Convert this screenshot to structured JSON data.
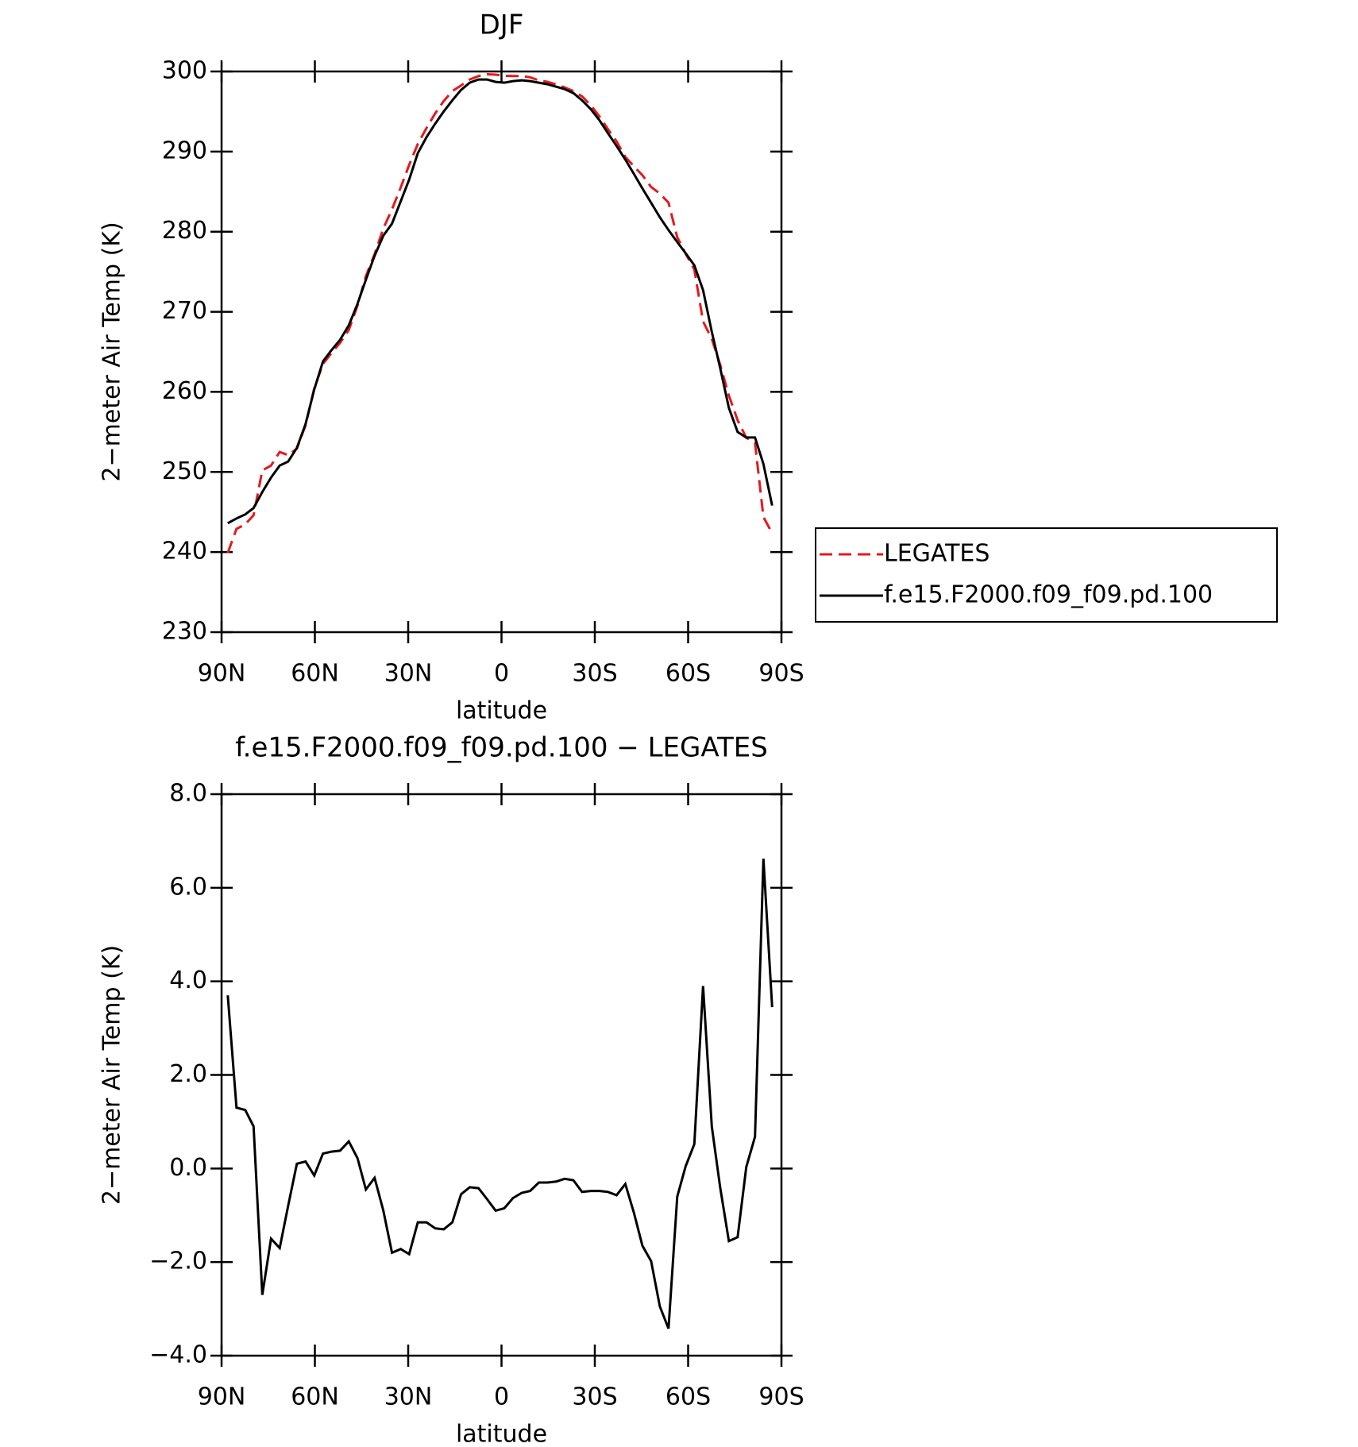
{
  "chart_data": [
    {
      "type": "line",
      "title": "DJF",
      "ylabel": "2−meter Air Temp (K)",
      "xlabel": "latitude",
      "x": [
        88.0,
        85.2,
        82.4,
        79.7,
        76.9,
        74.1,
        71.3,
        68.6,
        65.8,
        63.0,
        60.2,
        57.4,
        54.7,
        51.9,
        49.1,
        46.3,
        43.6,
        40.8,
        38.0,
        35.2,
        32.4,
        29.7,
        26.9,
        24.1,
        21.3,
        18.6,
        15.8,
        13.0,
        10.2,
        7.4,
        4.7,
        1.9,
        -0.9,
        -3.7,
        -6.5,
        -9.2,
        -12.0,
        -14.8,
        -17.6,
        -20.3,
        -23.1,
        -25.9,
        -28.7,
        -31.5,
        -34.2,
        -37.0,
        -39.8,
        -42.6,
        -45.3,
        -48.1,
        -50.9,
        -53.7,
        -56.5,
        -59.2,
        -62.0,
        -64.8,
        -67.6,
        -70.3,
        -73.1,
        -75.9,
        -78.7,
        -81.5,
        -84.2,
        -87.0
      ],
      "series": [
        {
          "name": "LEGATES",
          "color": "#e41a1c",
          "style": "dashed",
          "values": [
            239.9,
            242.9,
            243.45,
            244.6,
            250.2,
            250.8,
            252.5,
            252.1,
            252.9,
            255.85,
            260.45,
            263.48,
            264.84,
            266.12,
            267.72,
            270.78,
            274.45,
            277.2,
            280.4,
            282.8,
            285.52,
            288.33,
            290.95,
            292.95,
            294.78,
            296.3,
            297.55,
            298.25,
            299.0,
            299.42,
            299.65,
            299.6,
            299.45,
            299.43,
            299.42,
            299.28,
            298.9,
            298.7,
            298.38,
            298.02,
            297.55,
            296.9,
            295.78,
            294.38,
            292.8,
            291.27,
            289.33,
            288.15,
            287.05,
            285.58,
            284.75,
            283.62,
            279.3,
            277.25,
            275.28,
            268.8,
            266.6,
            263.4,
            259.55,
            256.47,
            254.27,
            253.62,
            244.38,
            242.35
          ]
        },
        {
          "name": "f.e15.F2000.f09_f09.pd.100",
          "color": "#000000",
          "style": "solid",
          "values": [
            243.6,
            244.2,
            244.7,
            245.5,
            247.5,
            249.3,
            250.8,
            251.3,
            253.0,
            256.0,
            260.3,
            263.8,
            265.2,
            266.5,
            268.3,
            271.0,
            274.0,
            277.0,
            279.5,
            281.0,
            283.8,
            286.5,
            289.8,
            291.8,
            293.5,
            295.0,
            296.4,
            297.7,
            298.6,
            299.0,
            299.0,
            298.7,
            298.6,
            298.8,
            298.9,
            298.8,
            298.6,
            298.4,
            298.1,
            297.8,
            297.3,
            296.4,
            295.3,
            293.9,
            292.3,
            290.7,
            289.0,
            287.2,
            285.4,
            283.6,
            281.8,
            280.2,
            278.7,
            277.3,
            275.8,
            272.7,
            267.5,
            263.0,
            258.0,
            255.0,
            254.3,
            254.3,
            251.0,
            245.8
          ]
        }
      ],
      "xlim": [
        90,
        -90
      ],
      "xticks": [
        {
          "value": 90,
          "label": "90N"
        },
        {
          "value": 60,
          "label": "60N"
        },
        {
          "value": 30,
          "label": "30N"
        },
        0,
        {
          "value": -30,
          "label": "30S"
        },
        {
          "value": -60,
          "label": "60S"
        },
        {
          "value": -90,
          "label": "90S"
        }
      ],
      "ylim": [
        230,
        300
      ],
      "yticks": [
        230,
        240,
        250,
        260,
        270,
        280,
        290,
        300
      ],
      "legend": "right"
    },
    {
      "type": "line",
      "title": "f.e15.F2000.f09_f09.pd.100 − LEGATES",
      "ylabel": "2−meter Air Temp (K)",
      "xlabel": "latitude",
      "x": [
        88.0,
        85.2,
        82.4,
        79.7,
        76.9,
        74.1,
        71.3,
        68.6,
        65.8,
        63.0,
        60.2,
        57.4,
        54.7,
        51.9,
        49.1,
        46.3,
        43.6,
        40.8,
        38.0,
        35.2,
        32.4,
        29.7,
        26.9,
        24.1,
        21.3,
        18.6,
        15.8,
        13.0,
        10.2,
        7.4,
        4.7,
        1.9,
        -0.9,
        -3.7,
        -6.5,
        -9.2,
        -12.0,
        -14.8,
        -17.6,
        -20.3,
        -23.1,
        -25.9,
        -28.7,
        -31.5,
        -34.2,
        -37.0,
        -39.8,
        -42.6,
        -45.3,
        -48.1,
        -50.9,
        -53.7,
        -56.5,
        -59.2,
        -62.0,
        -64.8,
        -67.6,
        -70.3,
        -73.1,
        -75.9,
        -78.7,
        -81.5,
        -84.2,
        -87.0
      ],
      "values": [
        3.7,
        1.3,
        1.25,
        0.9,
        -2.7,
        -1.5,
        -1.7,
        -0.8,
        0.1,
        0.15,
        -0.15,
        0.32,
        0.36,
        0.38,
        0.58,
        0.22,
        -0.45,
        -0.2,
        -0.9,
        -1.8,
        -1.72,
        -1.83,
        -1.15,
        -1.15,
        -1.28,
        -1.3,
        -1.15,
        -0.55,
        -0.4,
        -0.42,
        -0.65,
        -0.9,
        -0.85,
        -0.63,
        -0.52,
        -0.48,
        -0.3,
        -0.3,
        -0.28,
        -0.22,
        -0.25,
        -0.5,
        -0.48,
        -0.48,
        -0.5,
        -0.57,
        -0.33,
        -0.95,
        -1.65,
        -1.98,
        -2.95,
        -3.42,
        -0.6,
        0.05,
        0.52,
        3.9,
        0.9,
        -0.4,
        -1.55,
        -1.47,
        0.03,
        0.68,
        6.62,
        3.45
      ],
      "color": "#000000",
      "xlim": [
        90,
        -90
      ],
      "xticks": [
        {
          "value": 90,
          "label": "90N"
        },
        {
          "value": 60,
          "label": "60N"
        },
        {
          "value": 30,
          "label": "30N"
        },
        0,
        {
          "value": -30,
          "label": "30S"
        },
        {
          "value": -60,
          "label": "60S"
        },
        {
          "value": -90,
          "label": "90S"
        }
      ],
      "ylim": [
        -4,
        8
      ],
      "yticks": [
        {
          "value": -4,
          "label": "−4.0"
        },
        {
          "value": -2,
          "label": "−2.0"
        },
        {
          "value": 0,
          "label": "0.0"
        },
        {
          "value": 2,
          "label": "2.0"
        },
        {
          "value": 4,
          "label": "4.0"
        },
        {
          "value": 6,
          "label": "6.0"
        },
        {
          "value": 8,
          "label": "8.0"
        }
      ]
    }
  ]
}
